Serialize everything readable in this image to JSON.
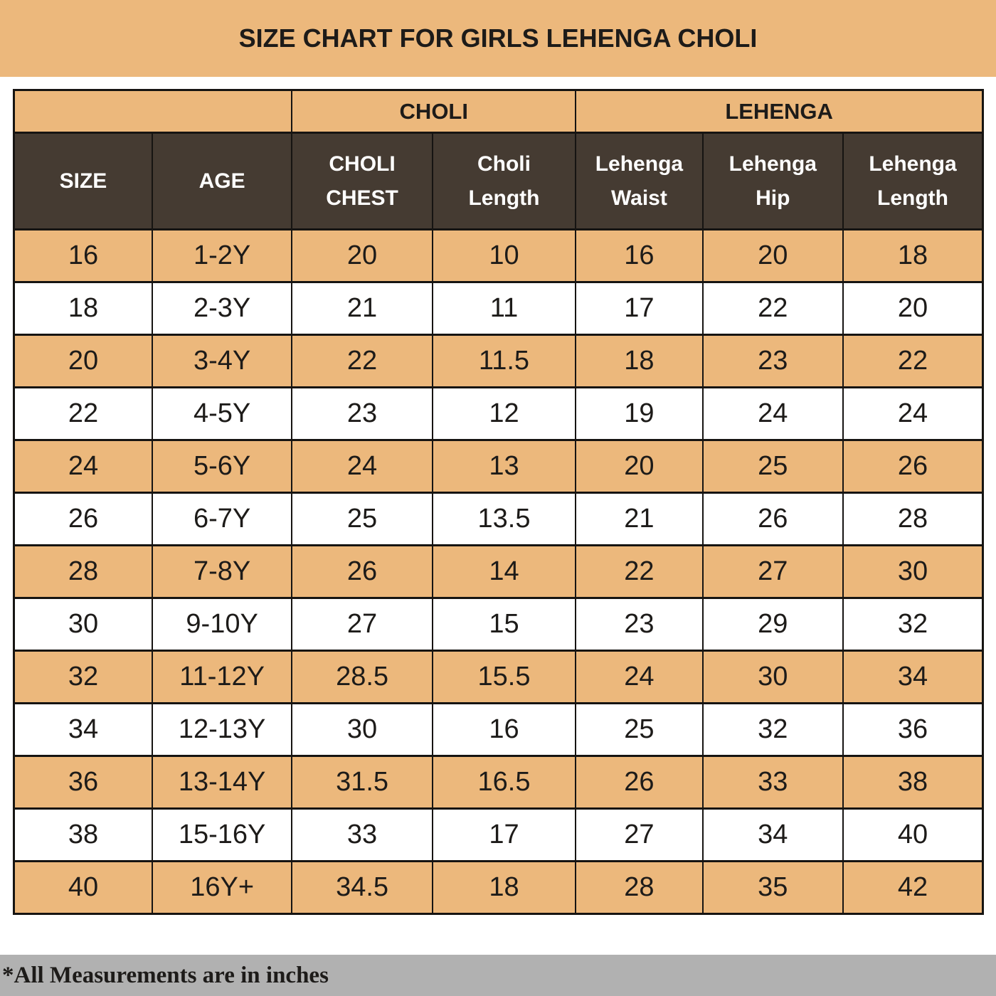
{
  "page": {
    "title": "SIZE CHART FOR GIRLS LEHENGA CHOLI",
    "footer_note": "*All Measurements are in inches"
  },
  "colors": {
    "tan": "#ECB87C",
    "header_dark_brown": "#453B32",
    "border_black": "#161412",
    "footer_gray": "#B1B1B1",
    "header_text_white": "#FFFFFF",
    "body_text_dark": "#1D1B19"
  },
  "chart_data": {
    "type": "table",
    "title": "SIZE CHART FOR GIRLS LEHENGA CHOLI",
    "units_note": "*All Measurements are in inches",
    "group_headers": [
      {
        "label": "",
        "span": 2
      },
      {
        "label": "CHOLI",
        "span": 2
      },
      {
        "label": "LEHENGA",
        "span": 3
      }
    ],
    "columns": [
      "SIZE",
      "AGE",
      "CHOLI CHEST",
      "Choli Length",
      "Lehenga Waist",
      "Lehenga Hip",
      "Lehenga Length"
    ],
    "rows": [
      [
        "16",
        "1-2Y",
        "20",
        "10",
        "16",
        "20",
        "18"
      ],
      [
        "18",
        "2-3Y",
        "21",
        "11",
        "17",
        "22",
        "20"
      ],
      [
        "20",
        "3-4Y",
        "22",
        "11.5",
        "18",
        "23",
        "22"
      ],
      [
        "22",
        "4-5Y",
        "23",
        "12",
        "19",
        "24",
        "24"
      ],
      [
        "24",
        "5-6Y",
        "24",
        "13",
        "20",
        "25",
        "26"
      ],
      [
        "26",
        "6-7Y",
        "25",
        "13.5",
        "21",
        "26",
        "28"
      ],
      [
        "28",
        "7-8Y",
        "26",
        "14",
        "22",
        "27",
        "30"
      ],
      [
        "30",
        "9-10Y",
        "27",
        "15",
        "23",
        "29",
        "32"
      ],
      [
        "32",
        "11-12Y",
        "28.5",
        "15.5",
        "24",
        "30",
        "34"
      ],
      [
        "34",
        "12-13Y",
        "30",
        "16",
        "25",
        "32",
        "36"
      ],
      [
        "36",
        "13-14Y",
        "31.5",
        "16.5",
        "26",
        "33",
        "38"
      ],
      [
        "38",
        "15-16Y",
        "33",
        "17",
        "27",
        "34",
        "40"
      ],
      [
        "40",
        "16Y+",
        "34.5",
        "18",
        "28",
        "35",
        "42"
      ]
    ]
  }
}
